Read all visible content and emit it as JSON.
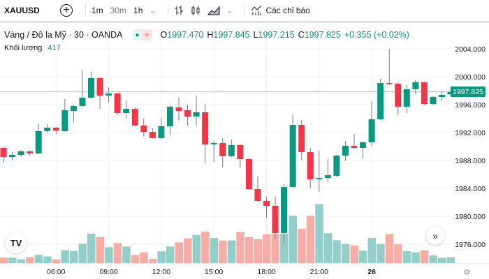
{
  "toolbar": {
    "symbol": "XAUUSD",
    "intervals": [
      "1m",
      "30m",
      "1h"
    ],
    "indicators_label": "Các chỉ báo",
    "icons": [
      "plus-circle-icon",
      "chevron-down-icon",
      "bar-chart-icon",
      "candles-icon",
      "area-chart-icon",
      "chevron-down-icon",
      "indicators-icon"
    ]
  },
  "legend": {
    "title": "Vàng / Đô la Mỹ · 30 · OANDA",
    "o_label": "O",
    "o": "1997.470",
    "h_label": "H",
    "h": "1997.845",
    "l_label": "L",
    "l": "1997.215",
    "c_label": "C",
    "c": "1997.825",
    "change": "+0.355 (+0.02%)",
    "badge_dot": "●",
    "badge_wave": "≈"
  },
  "volume": {
    "label": "Khối lượng",
    "value": "417"
  },
  "colors": {
    "up": "#089981",
    "down": "#f23645",
    "vol_up": "#93cfca",
    "vol_down": "#f8aca6"
  },
  "price_axis": {
    "ticks": [
      "2004.000",
      "2000.000",
      "1996.000",
      "1992.000",
      "1988.000",
      "1984.000",
      "1980.000",
      "1976.000"
    ],
    "last_price": "1997.825"
  },
  "time_axis": {
    "ticks": [
      "06:00",
      "09:00",
      "12:00",
      "15:00",
      "18:00",
      "21:00",
      "26"
    ]
  },
  "buttons": {
    "tv_logo": "TV",
    "scroll": "»",
    "settings": "☼"
  },
  "chart_data": {
    "type": "candlestick",
    "interval": "30m",
    "ylim": [
      1974,
      2006
    ],
    "columns": [
      "time",
      "open",
      "high",
      "low",
      "close",
      "volume"
    ],
    "candles": [
      [
        "03:00",
        1989.8,
        1989.9,
        1987.6,
        1988.5,
        400
      ],
      [
        "03:30",
        1988.5,
        1989.2,
        1988.0,
        1988.8,
        400
      ],
      [
        "04:00",
        1988.8,
        1989.5,
        1988.5,
        1989.3,
        275
      ],
      [
        "04:30",
        1989.3,
        1989.5,
        1988.7,
        1989.0,
        430
      ],
      [
        "05:00",
        1989.0,
        1993.3,
        1988.9,
        1992.2,
        610
      ],
      [
        "05:30",
        1992.2,
        1993.2,
        1992.0,
        1992.7,
        485
      ],
      [
        "06:00",
        1992.7,
        1992.8,
        1991.8,
        1992.3,
        260
      ],
      [
        "06:30",
        1992.2,
        1996.8,
        1992.1,
        1995.2,
        950
      ],
      [
        "07:00",
        1995.1,
        1995.9,
        1993.4,
        1995.8,
        885
      ],
      [
        "07:30",
        1995.8,
        2001.0,
        1995.7,
        1997.0,
        1440
      ],
      [
        "08:00",
        1997.0,
        2000.7,
        1996.8,
        1999.8,
        2185
      ],
      [
        "08:30",
        1999.8,
        1999.9,
        1995.4,
        1997.3,
        1925
      ],
      [
        "09:00",
        1997.3,
        1998.5,
        1996.3,
        1997.6,
        1180
      ],
      [
        "09:30",
        1997.6,
        1997.7,
        1994.5,
        1994.8,
        1490
      ],
      [
        "10:00",
        1994.8,
        1996.6,
        1994.0,
        1995.4,
        1230
      ],
      [
        "10:30",
        1995.4,
        1995.6,
        1992.9,
        1993.0,
        590
      ],
      [
        "11:00",
        1993.0,
        1994.0,
        1991.4,
        1992.1,
        795
      ],
      [
        "11:30",
        1992.1,
        1992.6,
        1991.1,
        1991.2,
        310
      ],
      [
        "12:00",
        1991.2,
        1994.1,
        1991.0,
        1992.9,
        870
      ],
      [
        "12:30",
        1992.9,
        1995.9,
        1991.7,
        1995.7,
        1230
      ],
      [
        "13:00",
        1995.6,
        1997.0,
        1993.7,
        1995.1,
        1545
      ],
      [
        "13:30",
        1995.2,
        1996.0,
        1993.0,
        1994.3,
        1835
      ],
      [
        "14:00",
        1994.3,
        1997.3,
        1993.0,
        1994.9,
        2095
      ],
      [
        "14:30",
        1994.9,
        1996.1,
        1987.6,
        1990.3,
        2325
      ],
      [
        "15:00",
        1990.3,
        1990.8,
        1987.8,
        1990.5,
        1870
      ],
      [
        "15:30",
        1990.5,
        1991.2,
        1987.0,
        1988.6,
        1680
      ],
      [
        "16:00",
        1988.6,
        1991.0,
        1988.5,
        1990.2,
        1680
      ],
      [
        "16:30",
        1990.2,
        1990.3,
        1987.0,
        1988.2,
        2305
      ],
      [
        "17:00",
        1988.2,
        1988.4,
        1983.8,
        1983.9,
        1925
      ],
      [
        "17:30",
        1983.9,
        1985.7,
        1982.0,
        1982.2,
        1770
      ],
      [
        "18:00",
        1982.2,
        1982.8,
        1979.8,
        1981.5,
        2130
      ],
      [
        "18:30",
        1981.5,
        1982.8,
        1976.7,
        1977.6,
        2185
      ],
      [
        "19:00",
        1977.6,
        1984.6,
        1976.2,
        1984.2,
        2185
      ],
      [
        "19:30",
        1984.2,
        1994.6,
        1984.1,
        1993.1,
        3520
      ],
      [
        "20:00",
        1993.1,
        1993.8,
        1988.0,
        1989.2,
        2550
      ],
      [
        "20:30",
        1989.2,
        1989.8,
        1984.0,
        1985.3,
        3520
      ],
      [
        "21:00",
        1985.3,
        1989.4,
        1983.5,
        1985.5,
        4385
      ],
      [
        "21:30",
        1985.5,
        1988.2,
        1984.9,
        1985.9,
        2220
      ],
      [
        "22:00",
        1985.8,
        1988.8,
        1985.6,
        1988.7,
        1700
      ],
      [
        "22:30",
        1988.7,
        1990.8,
        1987.9,
        1990.1,
        1420
      ],
      [
        "23:00",
        1990.1,
        1991.8,
        1989.6,
        1989.8,
        1300
      ],
      [
        "23:30",
        1989.8,
        1990.7,
        1988.3,
        1990.6,
        920
      ],
      [
        "26 00:00",
        1990.6,
        1996.5,
        1990.0,
        1993.9,
        1870
      ],
      [
        "00:30",
        1993.9,
        1999.7,
        1993.8,
        1999.1,
        1420
      ],
      [
        "01:00",
        1999.1,
        2004.0,
        1998.8,
        1999.0,
        2170
      ],
      [
        "01:30",
        1999.0,
        1999.2,
        1994.5,
        1995.7,
        1390
      ],
      [
        "02:00",
        1995.7,
        1998.8,
        1994.8,
        1998.2,
        885
      ],
      [
        "02:30",
        1998.2,
        1999.5,
        1997.5,
        1999.2,
        795
      ],
      [
        "03:00",
        1999.2,
        1999.3,
        1996.0,
        1996.1,
        950
      ],
      [
        "03:30",
        1996.1,
        1997.2,
        1996.0,
        1997.1,
        555
      ],
      [
        "04:00",
        1997.1,
        1998.0,
        1996.5,
        1997.4,
        380
      ],
      [
        "04:30",
        1997.47,
        1997.845,
        1997.215,
        1997.825,
        417
      ]
    ]
  }
}
